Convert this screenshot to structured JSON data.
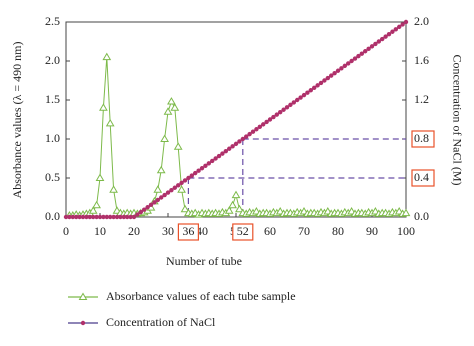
{
  "chart_data": {
    "type": "line",
    "xlabel": "Number of tube",
    "ylabel": "Absorbance values (λ = 490 nm)",
    "y2label": "Concentration of NaCl (M)",
    "xlim": [
      0,
      100
    ],
    "xticks": [
      0,
      10,
      20,
      30,
      40,
      50,
      60,
      70,
      80,
      90,
      100
    ],
    "ylim": [
      0,
      2.5
    ],
    "yticks": [
      {
        "value": 0,
        "label": "0.0"
      },
      0.5,
      {
        "value": 1,
        "label": "1.0"
      },
      1.5,
      {
        "value": 2,
        "label": "2.0"
      },
      2.5
    ],
    "y2lim": [
      0,
      2.0
    ],
    "y2ticks": [
      {
        "value": 0,
        "label": "0.0"
      },
      0.4,
      0.8,
      1.2,
      1.6,
      {
        "value": 2,
        "label": "2.0"
      }
    ],
    "annotations": [
      {
        "x": 36,
        "y2": 0.4
      },
      {
        "x": 52,
        "y2": 0.8
      }
    ],
    "annotation_color": "#e8522a",
    "guide_color": "#6a4fa8",
    "series": [
      {
        "name": "Absorbance values of each tube sample",
        "color": "#7dba4a",
        "marker": "triangle",
        "x": [
          1,
          2,
          3,
          4,
          5,
          6,
          7,
          8,
          9,
          10,
          11,
          12,
          13,
          14,
          15,
          16,
          17,
          18,
          19,
          20,
          21,
          22,
          23,
          24,
          25,
          26,
          27,
          28,
          29,
          30,
          31,
          32,
          33,
          34,
          35,
          36,
          37,
          38,
          39,
          40,
          41,
          42,
          43,
          44,
          45,
          46,
          47,
          48,
          49,
          50,
          51,
          52,
          53,
          54,
          55,
          56,
          57,
          58,
          59,
          60,
          61,
          62,
          63,
          64,
          65,
          66,
          67,
          68,
          69,
          70,
          71,
          72,
          73,
          74,
          75,
          76,
          77,
          78,
          79,
          80,
          81,
          82,
          83,
          84,
          85,
          86,
          87,
          88,
          89,
          90,
          91,
          92,
          93,
          94,
          95,
          96,
          97,
          98,
          99,
          100
        ],
        "values": [
          0.02,
          0.02,
          0.03,
          0.02,
          0.03,
          0.04,
          0.05,
          0.08,
          0.15,
          0.5,
          1.4,
          2.05,
          1.2,
          0.35,
          0.08,
          0.05,
          0.04,
          0.05,
          0.04,
          0.05,
          0.04,
          0.05,
          0.06,
          0.08,
          0.12,
          0.2,
          0.35,
          0.6,
          1.0,
          1.35,
          1.48,
          1.4,
          0.9,
          0.35,
          0.1,
          0.05,
          0.04,
          0.05,
          0.03,
          0.05,
          0.04,
          0.05,
          0.04,
          0.05,
          0.04,
          0.06,
          0.05,
          0.08,
          0.15,
          0.28,
          0.1,
          0.05,
          0.04,
          0.06,
          0.05,
          0.07,
          0.04,
          0.05,
          0.05,
          0.04,
          0.06,
          0.05,
          0.07,
          0.04,
          0.05,
          0.05,
          0.04,
          0.06,
          0.05,
          0.07,
          0.04,
          0.05,
          0.05,
          0.04,
          0.06,
          0.05,
          0.07,
          0.04,
          0.05,
          0.05,
          0.04,
          0.06,
          0.05,
          0.07,
          0.04,
          0.05,
          0.05,
          0.04,
          0.06,
          0.05,
          0.07,
          0.04,
          0.05,
          0.05,
          0.04,
          0.06,
          0.05,
          0.07,
          0.04,
          0.05
        ]
      },
      {
        "name": "Concentration of NaCl",
        "color": "#4a3c8c",
        "marker": "dot",
        "marker_color": "#b0306a",
        "axis": "y2",
        "x": [
          0,
          1,
          2,
          3,
          4,
          5,
          6,
          7,
          8,
          9,
          10,
          11,
          12,
          13,
          14,
          15,
          16,
          17,
          18,
          19,
          20,
          21,
          22,
          23,
          24,
          25,
          26,
          27,
          28,
          29,
          30,
          31,
          32,
          33,
          34,
          35,
          36,
          37,
          38,
          39,
          40,
          41,
          42,
          43,
          44,
          45,
          46,
          47,
          48,
          49,
          50,
          51,
          52,
          53,
          54,
          55,
          56,
          57,
          58,
          59,
          60,
          61,
          62,
          63,
          64,
          65,
          66,
          67,
          68,
          69,
          70,
          71,
          72,
          73,
          74,
          75,
          76,
          77,
          78,
          79,
          80,
          81,
          82,
          83,
          84,
          85,
          86,
          87,
          88,
          89,
          90,
          91,
          92,
          93,
          94,
          95,
          96,
          97,
          98,
          99,
          100
        ],
        "values": [
          0,
          0,
          0,
          0,
          0,
          0,
          0,
          0,
          0,
          0,
          0,
          0,
          0,
          0,
          0,
          0,
          0,
          0,
          0,
          0,
          0,
          0.025,
          0.05,
          0.075,
          0.1,
          0.125,
          0.15,
          0.175,
          0.2,
          0.225,
          0.25,
          0.275,
          0.3,
          0.325,
          0.35,
          0.375,
          0.4,
          0.425,
          0.45,
          0.475,
          0.5,
          0.525,
          0.55,
          0.575,
          0.6,
          0.625,
          0.65,
          0.675,
          0.7,
          0.725,
          0.75,
          0.775,
          0.8,
          0.825,
          0.85,
          0.875,
          0.9,
          0.925,
          0.95,
          0.975,
          1,
          1.025,
          1.05,
          1.075,
          1.1,
          1.125,
          1.15,
          1.175,
          1.2,
          1.225,
          1.25,
          1.275,
          1.3,
          1.325,
          1.35,
          1.375,
          1.4,
          1.425,
          1.45,
          1.475,
          1.5,
          1.525,
          1.55,
          1.575,
          1.6,
          1.625,
          1.65,
          1.675,
          1.7,
          1.725,
          1.75,
          1.775,
          1.8,
          1.825,
          1.85,
          1.875,
          1.9,
          1.925,
          1.95,
          1.975,
          2
        ]
      }
    ]
  }
}
